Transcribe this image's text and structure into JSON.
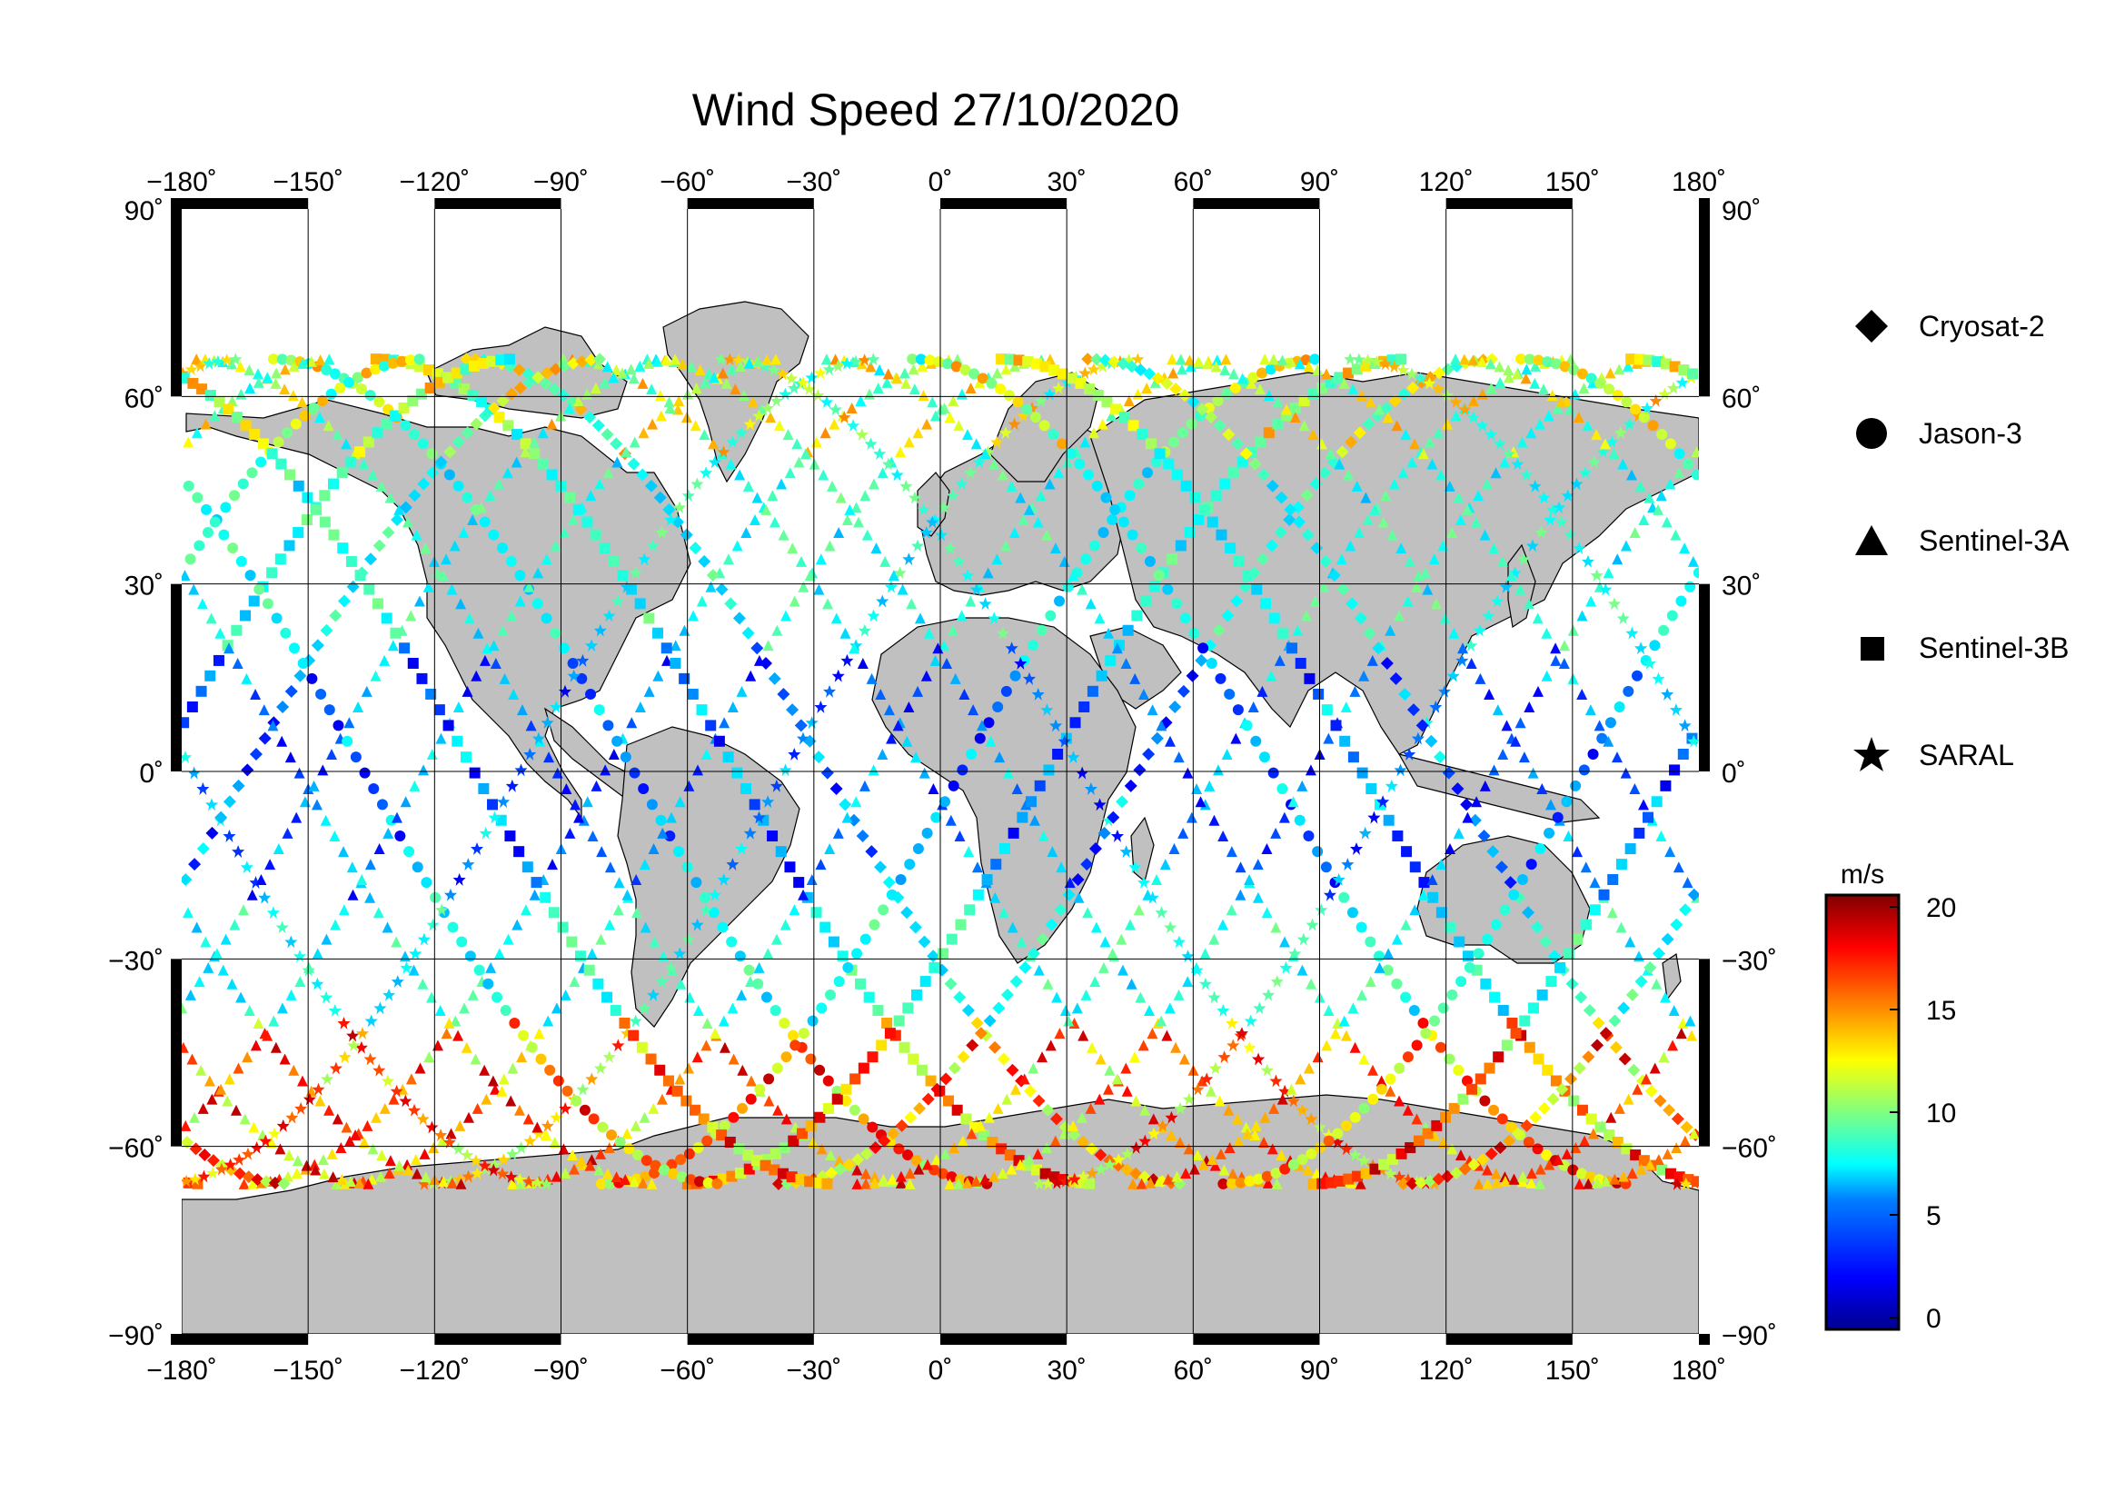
{
  "title": "Wind Speed 27/10/2020",
  "lon_ticks": [
    "−180˚",
    "−150˚",
    "−120˚",
    "−90˚",
    "−60˚",
    "−30˚",
    "0˚",
    "30˚",
    "60˚",
    "90˚",
    "120˚",
    "150˚",
    "180˚"
  ],
  "lat_ticks_left": [
    "90˚",
    "60˚",
    "30˚",
    "0˚",
    "−30˚",
    "−60˚",
    "−90˚"
  ],
  "lat_ticks_right": [
    "90˚",
    "60˚",
    "30˚",
    "0˚",
    "−30˚",
    "−60˚",
    "−90˚"
  ],
  "legend": [
    {
      "label": "Cryosat-2",
      "symbol": "diamond"
    },
    {
      "label": "Jason-3",
      "symbol": "circle"
    },
    {
      "label": "Sentinel-3A",
      "symbol": "triangle"
    },
    {
      "label": "Sentinel-3B",
      "symbol": "square"
    },
    {
      "label": "SARAL",
      "symbol": "star"
    }
  ],
  "colorbar": {
    "unit": "m/s",
    "min": 0,
    "max": 20,
    "ticks": [
      "20",
      "15",
      "10",
      "5",
      "0"
    ],
    "colormap": [
      "#00008f",
      "#0000ff",
      "#0080ff",
      "#00ffff",
      "#80ff80",
      "#ffff00",
      "#ff8000",
      "#ff0000",
      "#800000"
    ]
  },
  "colors": {
    "land": "#c0c0c0",
    "ocean": "#ffffff",
    "grid": "#000000"
  },
  "chart_data": {
    "type": "scatter",
    "projection": "equirectangular",
    "xlim": [
      -180,
      180
    ],
    "ylim": [
      -90,
      90
    ],
    "xlabel": "",
    "ylabel": "",
    "grid": true,
    "legend_placement": "right",
    "color_variable": "wind speed (m/s)"
  }
}
